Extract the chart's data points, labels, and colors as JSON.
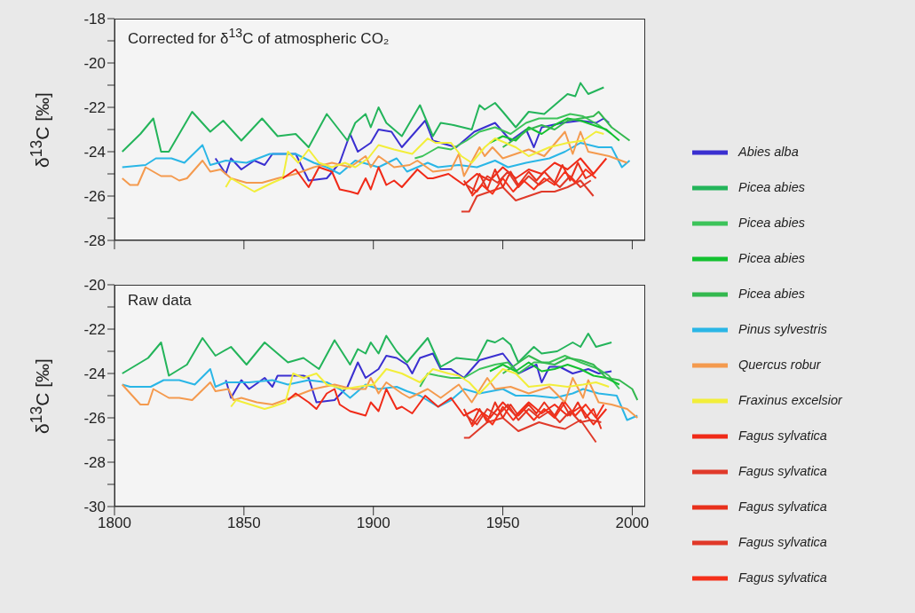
{
  "chart_data": [
    {
      "type": "line",
      "title": "Corrected for δ$^{13}$C of atmospheric CO₂",
      "ylabel": "δ$^{13}$C [‰]",
      "xlim": [
        1800,
        2005
      ],
      "xticks": [
        1800,
        1850,
        1900,
        1950,
        2000
      ],
      "ylim": [
        -28,
        -18
      ],
      "yticks": [
        -28,
        {
          "value": -27,
          "label": null
        },
        -26,
        {
          "value": -25,
          "label": null
        },
        -24,
        {
          "value": -23,
          "label": null
        },
        -22,
        {
          "value": -21,
          "label": null
        },
        -20,
        {
          "value": -19,
          "label": null
        },
        -18
      ],
      "tick_labels": "y",
      "legend": "right",
      "series": [
        {
          "name": "Abies alba",
          "color": "#3a2fd0",
          "x": [
            1839,
            1843,
            1845,
            1849,
            1854,
            1858,
            1861,
            1870,
            1875,
            1882,
            1887,
            1891,
            1894,
            1899,
            1902,
            1907,
            1911,
            1920,
            1923,
            1932,
            1939,
            1947,
            1953,
            1959,
            1962,
            1965,
            1973,
            1980,
            1986,
            1989,
            1991
          ],
          "values": [
            -24.3,
            -25.0,
            -24.3,
            -24.8,
            -24.4,
            -24.6,
            -24.1,
            -24.1,
            -25.3,
            -25.2,
            -24.5,
            -23.2,
            -24.0,
            -23.6,
            -23.0,
            -23.1,
            -23.8,
            -22.6,
            -23.5,
            -23.8,
            -23.1,
            -22.7,
            -23.5,
            -23.0,
            -23.8,
            -22.9,
            -22.7,
            -22.6,
            -22.7,
            -22.5,
            -22.7
          ]
        },
        {
          "name": "Picea abies",
          "color": "#23b45a",
          "x": [
            1803,
            1810,
            1815,
            1818,
            1821,
            1830,
            1837,
            1842,
            1849,
            1857,
            1863,
            1870,
            1875,
            1882,
            1890,
            1893,
            1897,
            1899,
            1902,
            1905,
            1911,
            1918,
            1923,
            1926,
            1931,
            1938,
            1941,
            1943,
            1947,
            1950,
            1955,
            1960,
            1966,
            1975,
            1978,
            1980,
            1983,
            1989
          ],
          "values": [
            -24.0,
            -23.2,
            -22.5,
            -24.0,
            -24.0,
            -22.2,
            -23.1,
            -22.6,
            -23.5,
            -22.5,
            -23.3,
            -23.2,
            -23.8,
            -22.3,
            -23.5,
            -22.7,
            -22.3,
            -22.9,
            -22.0,
            -22.7,
            -23.3,
            -21.9,
            -23.3,
            -22.7,
            -22.8,
            -23.0,
            -21.9,
            -22.1,
            -21.8,
            -22.2,
            -22.9,
            -22.2,
            -22.3,
            -21.4,
            -21.5,
            -20.9,
            -21.4,
            -21.1
          ]
        },
        {
          "name": "Picea abies",
          "color": "#3cc35a",
          "x": [
            1916,
            1919,
            1925,
            1930,
            1936,
            1941,
            1947,
            1953,
            1959,
            1964,
            1971,
            1976,
            1981,
            1987,
            1992
          ],
          "values": [
            -24.3,
            -24.2,
            -23.8,
            -23.9,
            -23.5,
            -23.1,
            -22.9,
            -23.2,
            -22.7,
            -22.5,
            -22.5,
            -22.3,
            -22.4,
            -22.8,
            -23.2
          ]
        },
        {
          "name": "Picea abies",
          "color": "#13c130",
          "x": [
            1945,
            1950,
            1955,
            1960,
            1965,
            1970,
            1975,
            1980,
            1985,
            1990,
            1995
          ],
          "values": [
            -23.6,
            -23.3,
            -23.5,
            -22.9,
            -23.2,
            -22.8,
            -22.5,
            -22.6,
            -22.8,
            -23.0,
            -23.5
          ]
        },
        {
          "name": "Picea abies",
          "color": "#34b84f",
          "x": [
            1950,
            1955,
            1960,
            1965,
            1970,
            1975,
            1980,
            1985,
            1987,
            1992,
            1999
          ],
          "values": [
            -23.8,
            -23.4,
            -23.0,
            -22.8,
            -23.0,
            -22.6,
            -22.5,
            -22.4,
            -22.2,
            -22.9,
            -23.5
          ]
        },
        {
          "name": "Pinus sylvestris",
          "color": "#2ab6e6",
          "x": [
            1803,
            1812,
            1816,
            1822,
            1827,
            1834,
            1837,
            1843,
            1851,
            1860,
            1870,
            1877,
            1882,
            1887,
            1893,
            1902,
            1909,
            1913,
            1921,
            1925,
            1933,
            1940,
            1947,
            1952,
            1959,
            1968,
            1974,
            1980,
            1987,
            1992,
            1996,
            1999
          ],
          "values": [
            -24.7,
            -24.6,
            -24.3,
            -24.3,
            -24.5,
            -23.7,
            -24.6,
            -24.4,
            -24.5,
            -24.1,
            -24.1,
            -24.5,
            -24.7,
            -25.0,
            -24.4,
            -24.7,
            -24.3,
            -24.9,
            -24.5,
            -24.7,
            -24.6,
            -24.7,
            -24.4,
            -24.7,
            -24.5,
            -24.3,
            -24.0,
            -23.6,
            -23.8,
            -23.8,
            -24.7,
            -24.4
          ]
        },
        {
          "name": "Quercus robur",
          "color": "#f49a4e",
          "x": [
            1803,
            1806,
            1809,
            1812,
            1818,
            1822,
            1825,
            1828,
            1834,
            1837,
            1841,
            1845,
            1851,
            1857,
            1863,
            1870,
            1877,
            1884,
            1891,
            1897,
            1899,
            1902,
            1908,
            1914,
            1917,
            1923,
            1930,
            1933,
            1935,
            1941,
            1943,
            1946,
            1950,
            1955,
            1960,
            1966,
            1974,
            1977,
            1980,
            1983,
            1991,
            1998
          ],
          "values": [
            -25.2,
            -25.5,
            -25.5,
            -24.7,
            -25.1,
            -25.1,
            -25.3,
            -25.2,
            -24.4,
            -24.9,
            -24.8,
            -25.2,
            -25.4,
            -25.4,
            -25.2,
            -25.0,
            -24.7,
            -24.5,
            -24.7,
            -24.2,
            -24.7,
            -24.2,
            -24.7,
            -24.6,
            -24.4,
            -24.9,
            -24.8,
            -24.1,
            -25.1,
            -23.8,
            -24.2,
            -23.8,
            -24.3,
            -24.1,
            -23.9,
            -24.2,
            -23.1,
            -24.1,
            -23.1,
            -24.0,
            -24.2,
            -24.5
          ]
        },
        {
          "name": "Fraxinus excelsior",
          "color": "#f2ee3a",
          "x": [
            1843,
            1845,
            1854,
            1861,
            1865,
            1867,
            1871,
            1875,
            1879,
            1884,
            1889,
            1893,
            1898,
            1902,
            1908,
            1915,
            1921,
            1924,
            1930,
            1934,
            1938,
            1943,
            1947,
            1955,
            1960,
            1968,
            1975,
            1981,
            1986,
            1989
          ],
          "values": [
            -25.6,
            -25.2,
            -25.8,
            -25.4,
            -25.2,
            -24.0,
            -24.5,
            -23.9,
            -24.5,
            -24.7,
            -24.5,
            -24.7,
            -24.3,
            -23.7,
            -23.9,
            -24.1,
            -23.4,
            -23.6,
            -23.6,
            -24.2,
            -24.5,
            -23.8,
            -23.4,
            -23.8,
            -24.2,
            -23.8,
            -23.6,
            -23.5,
            -23.1,
            -23.2
          ]
        },
        {
          "name": "Fagus sylvatica",
          "color": "#f02a18",
          "x": [
            1865,
            1870,
            1875,
            1879,
            1884,
            1887,
            1891,
            1894,
            1897,
            1899,
            1902,
            1905,
            1908,
            1911,
            1917,
            1921,
            1923,
            1929,
            1935,
            1940,
            1945,
            1950,
            1955,
            1960,
            1965,
            1970,
            1975,
            1980,
            1985,
            1990
          ],
          "values": [
            -25.2,
            -24.8,
            -25.6,
            -24.7,
            -24.9,
            -25.7,
            -25.8,
            -25.9,
            -25.2,
            -25.7,
            -24.7,
            -25.5,
            -25.3,
            -25.6,
            -24.8,
            -25.2,
            -25.2,
            -25.0,
            -25.5,
            -25.0,
            -25.3,
            -24.7,
            -25.2,
            -24.8,
            -25.0,
            -24.5,
            -24.8,
            -24.3,
            -25.0,
            -24.3
          ]
        },
        {
          "name": "Fagus sylvatica",
          "color": "#e03a2a",
          "x": [
            1934,
            1937,
            1940,
            1945,
            1950,
            1955,
            1960,
            1965,
            1970,
            1975,
            1980,
            1985
          ],
          "values": [
            -26.7,
            -26.7,
            -26.0,
            -25.8,
            -25.6,
            -26.2,
            -26.0,
            -25.8,
            -25.8,
            -25.6,
            -25.3,
            -26.0
          ]
        },
        {
          "name": "Fagus sylvatica",
          "color": "#e8301c",
          "x": [
            1935,
            1938,
            1941,
            1944,
            1947,
            1950,
            1953,
            1956,
            1960,
            1963,
            1966,
            1970,
            1973,
            1976,
            1979,
            1982,
            1985
          ],
          "values": [
            -25.3,
            -25.9,
            -25.0,
            -25.7,
            -24.8,
            -25.6,
            -24.9,
            -25.5,
            -24.9,
            -25.3,
            -24.9,
            -25.4,
            -24.6,
            -25.3,
            -24.5,
            -25.2,
            -25.0
          ]
        },
        {
          "name": "Fagus sylvatica",
          "color": "#e03828",
          "x": [
            1936,
            1940,
            1944,
            1948,
            1952,
            1956,
            1960,
            1964,
            1968,
            1972,
            1976,
            1980,
            1984
          ],
          "values": [
            -25.5,
            -25.8,
            -25.1,
            -25.4,
            -24.9,
            -25.6,
            -25.1,
            -25.5,
            -25.2,
            -25.6,
            -25.1,
            -25.6,
            -25.3
          ]
        },
        {
          "name": "Fagus sylvatica",
          "color": "#f5301a",
          "x": [
            1938,
            1942,
            1946,
            1950,
            1954,
            1958,
            1962,
            1966,
            1970,
            1974,
            1978,
            1982,
            1986
          ],
          "values": [
            -26.0,
            -25.5,
            -25.9,
            -25.2,
            -25.8,
            -25.3,
            -25.7,
            -25.2,
            -25.5,
            -24.9,
            -25.4,
            -24.8,
            -25.2
          ]
        }
      ]
    },
    {
      "type": "line",
      "title": "Raw data",
      "ylabel": "δ$^{13}$C [‰]",
      "xlim": [
        1800,
        2005
      ],
      "xticks": [
        1800,
        1850,
        1900,
        1950,
        2000
      ],
      "ylim": [
        -30,
        -20
      ],
      "yticks": [
        -30,
        {
          "value": -29,
          "label": null
        },
        -28,
        {
          "value": -27,
          "label": null
        },
        -26,
        {
          "value": -25,
          "label": null
        },
        -24,
        {
          "value": -23,
          "label": null
        },
        -22,
        {
          "value": -21,
          "label": null
        },
        -20
      ],
      "series": [
        {
          "color": "#3a2fd0",
          "x": [
            1843,
            1845,
            1849,
            1852,
            1858,
            1861,
            1863,
            1873,
            1875,
            1878,
            1885,
            1890,
            1894,
            1897,
            1902,
            1905,
            1909,
            1913,
            1915,
            1918,
            1923,
            1926,
            1930,
            1935,
            1941,
            1950,
            1956,
            1963,
            1965,
            1968,
            1972,
            1977,
            1983,
            1987,
            1992
          ],
          "values": [
            -24.3,
            -25.1,
            -24.3,
            -24.7,
            -24.2,
            -24.6,
            -24.1,
            -24.1,
            -24.2,
            -25.3,
            -25.2,
            -24.6,
            -23.5,
            -24.2,
            -23.8,
            -23.2,
            -23.3,
            -23.6,
            -24.0,
            -23.3,
            -23.1,
            -23.8,
            -23.8,
            -24.2,
            -23.4,
            -23.1,
            -24.0,
            -23.6,
            -24.4,
            -23.7,
            -23.7,
            -24.0,
            -23.8,
            -24.0,
            -23.9
          ]
        },
        {
          "color": "#23b45a",
          "x": [
            1803,
            1813,
            1818,
            1821,
            1828,
            1834,
            1839,
            1845,
            1851,
            1858,
            1867,
            1873,
            1879,
            1885,
            1891,
            1894,
            1897,
            1899,
            1902,
            1905,
            1909,
            1913,
            1921,
            1926,
            1932,
            1940,
            1944,
            1947,
            1950,
            1953,
            1956,
            1962,
            1965,
            1971,
            1977,
            1980,
            1983,
            1986,
            1992
          ],
          "values": [
            -24.0,
            -23.3,
            -22.6,
            -24.1,
            -23.6,
            -22.4,
            -23.2,
            -22.8,
            -23.6,
            -22.6,
            -23.5,
            -23.3,
            -23.8,
            -22.5,
            -23.6,
            -22.9,
            -23.1,
            -22.6,
            -23.1,
            -22.3,
            -23.0,
            -23.5,
            -22.4,
            -23.7,
            -23.3,
            -23.4,
            -22.5,
            -22.6,
            -22.4,
            -22.7,
            -23.5,
            -22.8,
            -23.1,
            -23.0,
            -22.6,
            -22.8,
            -22.2,
            -22.8,
            -22.6
          ]
        },
        {
          "color": "#3cc35a",
          "x": [
            1918,
            1921,
            1925,
            1930,
            1935,
            1941,
            1947,
            1952,
            1956,
            1962,
            1968,
            1974,
            1980,
            1987,
            1991,
            1995
          ],
          "values": [
            -24.6,
            -24.0,
            -24.1,
            -24.2,
            -24.2,
            -23.8,
            -23.6,
            -23.5,
            -24.0,
            -23.5,
            -23.5,
            -23.2,
            -23.5,
            -23.8,
            -24.1,
            -24.7
          ]
        },
        {
          "color": "#13c130",
          "x": [
            1945,
            1950,
            1955,
            1960,
            1965,
            1970,
            1975,
            1980,
            1985,
            1990,
            1995
          ],
          "values": [
            -23.9,
            -23.6,
            -23.9,
            -23.5,
            -23.9,
            -23.8,
            -23.6,
            -23.8,
            -24.1,
            -24.2,
            -24.5
          ]
        },
        {
          "color": "#34b84f",
          "x": [
            1950,
            1955,
            1960,
            1965,
            1970,
            1975,
            1980,
            1985,
            1990,
            1995,
            2000,
            2002
          ],
          "values": [
            -24.0,
            -23.6,
            -23.2,
            -23.5,
            -23.6,
            -23.3,
            -23.4,
            -23.6,
            -24.2,
            -24.3,
            -24.7,
            -25.2
          ]
        },
        {
          "color": "#2ab6e6",
          "x": [
            1803,
            1806,
            1814,
            1819,
            1825,
            1831,
            1837,
            1839,
            1843,
            1852,
            1861,
            1867,
            1875,
            1882,
            1887,
            1891,
            1897,
            1902,
            1909,
            1913,
            1918,
            1925,
            1930,
            1935,
            1941,
            1950,
            1955,
            1962,
            1970,
            1977,
            1981,
            1987,
            1994,
            1998,
            2002
          ],
          "values": [
            -24.5,
            -24.6,
            -24.6,
            -24.3,
            -24.3,
            -24.5,
            -23.8,
            -24.6,
            -24.4,
            -24.4,
            -24.3,
            -24.5,
            -24.3,
            -24.4,
            -24.7,
            -25.1,
            -24.5,
            -24.7,
            -24.6,
            -24.8,
            -25.0,
            -25.5,
            -25.2,
            -24.7,
            -24.9,
            -24.7,
            -25.0,
            -25.0,
            -25.1,
            -24.9,
            -24.7,
            -24.9,
            -25.0,
            -26.1,
            -25.9
          ]
        },
        {
          "color": "#f49a4e",
          "x": [
            1803,
            1810,
            1813,
            1815,
            1821,
            1825,
            1830,
            1837,
            1839,
            1844,
            1846,
            1849,
            1855,
            1861,
            1868,
            1877,
            1885,
            1892,
            1897,
            1899,
            1902,
            1905,
            1911,
            1914,
            1921,
            1926,
            1933,
            1938,
            1944,
            1947,
            1953,
            1960,
            1968,
            1974,
            1977,
            1981,
            1983,
            1987,
            1992,
            1998,
            2002
          ],
          "values": [
            -24.5,
            -25.4,
            -25.4,
            -24.7,
            -25.1,
            -25.1,
            -25.2,
            -24.4,
            -24.8,
            -24.7,
            -25.2,
            -25.1,
            -25.3,
            -25.4,
            -25.1,
            -24.7,
            -24.5,
            -24.7,
            -24.7,
            -24.2,
            -24.9,
            -24.4,
            -24.9,
            -25.1,
            -24.7,
            -25.1,
            -24.5,
            -25.3,
            -24.2,
            -24.7,
            -24.6,
            -24.9,
            -24.6,
            -25.3,
            -24.2,
            -25.1,
            -24.3,
            -25.3,
            -25.4,
            -25.6,
            -26.0
          ]
        },
        {
          "color": "#f2ee3a",
          "x": [
            1845,
            1847,
            1858,
            1861,
            1866,
            1869,
            1873,
            1878,
            1882,
            1889,
            1894,
            1900,
            1905,
            1911,
            1918,
            1923,
            1929,
            1933,
            1937,
            1941,
            1946,
            1950,
            1955,
            1960,
            1968,
            1975,
            1981,
            1986,
            1991
          ],
          "values": [
            -25.5,
            -25.2,
            -25.6,
            -25.5,
            -25.3,
            -24.0,
            -24.2,
            -24.0,
            -24.5,
            -24.7,
            -24.6,
            -24.5,
            -23.8,
            -24.0,
            -24.4,
            -23.8,
            -24.0,
            -24.1,
            -24.4,
            -24.9,
            -24.3,
            -23.8,
            -24.0,
            -24.6,
            -24.5,
            -24.6,
            -24.5,
            -24.4,
            -24.6
          ]
        },
        {
          "color": "#f02a18",
          "x": [
            1867,
            1870,
            1875,
            1878,
            1882,
            1885,
            1887,
            1891,
            1894,
            1897,
            1899,
            1902,
            1905,
            1909,
            1911,
            1915,
            1920,
            1925,
            1930,
            1935,
            1940,
            1945,
            1950,
            1955,
            1960,
            1965,
            1970,
            1975,
            1980,
            1985,
            1990
          ],
          "values": [
            -25.2,
            -24.9,
            -25.3,
            -25.6,
            -24.9,
            -24.7,
            -25.4,
            -25.7,
            -25.8,
            -25.9,
            -25.3,
            -25.7,
            -24.7,
            -25.6,
            -25.5,
            -25.8,
            -25.0,
            -25.5,
            -25.1,
            -25.9,
            -25.6,
            -26.0,
            -25.3,
            -25.9,
            -25.3,
            -25.8,
            -25.4,
            -25.9,
            -25.5,
            -26.3,
            -25.6
          ]
        },
        {
          "color": "#e03a2a",
          "x": [
            1935,
            1937,
            1944,
            1950,
            1956,
            1964,
            1970,
            1974,
            1980,
            1986
          ],
          "values": [
            -26.9,
            -26.9,
            -26.2,
            -26.0,
            -26.6,
            -26.2,
            -26.4,
            -26.5,
            -26.1,
            -27.1
          ]
        },
        {
          "color": "#e8301c",
          "x": [
            1935,
            1938,
            1941,
            1944,
            1947,
            1950,
            1953,
            1956,
            1960,
            1963,
            1966,
            1970,
            1973,
            1976,
            1979,
            1982,
            1985,
            1988
          ],
          "values": [
            -25.6,
            -26.3,
            -25.6,
            -26.2,
            -25.3,
            -26.0,
            -25.4,
            -25.9,
            -25.4,
            -25.8,
            -25.3,
            -25.9,
            -25.3,
            -25.9,
            -25.3,
            -26.0,
            -25.6,
            -26.5
          ]
        },
        {
          "color": "#e03828",
          "x": [
            1936,
            1940,
            1944,
            1948,
            1952,
            1956,
            1960,
            1964,
            1968,
            1972,
            1976,
            1980,
            1984,
            1988
          ],
          "values": [
            -25.9,
            -26.3,
            -25.6,
            -25.9,
            -25.4,
            -26.1,
            -25.6,
            -26.0,
            -25.7,
            -26.2,
            -25.7,
            -26.2,
            -26.1,
            -26.2
          ]
        },
        {
          "color": "#f5301a",
          "x": [
            1938,
            1942,
            1946,
            1950,
            1954,
            1958,
            1962,
            1966,
            1970,
            1974,
            1978,
            1982,
            1986,
            1989
          ],
          "values": [
            -26.4,
            -25.8,
            -26.3,
            -25.5,
            -26.1,
            -25.6,
            -26.1,
            -25.6,
            -26.0,
            -25.3,
            -25.9,
            -25.4,
            -26.0,
            -25.4
          ]
        }
      ]
    }
  ]
}
